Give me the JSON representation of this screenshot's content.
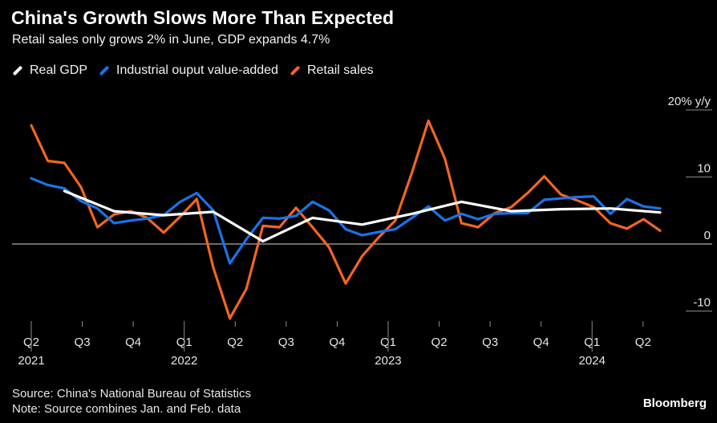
{
  "header": {
    "title": "China's Growth Slows More Than Expected",
    "subtitle": "Retail sales only grows 2% in June, GDP expands 4.7%"
  },
  "legend": [
    {
      "label": "Real GDP",
      "color": "#ffffff"
    },
    {
      "label": "Industrial ouput value-added",
      "color": "#1a73e8"
    },
    {
      "label": "Retail sales",
      "color": "#f26522"
    }
  ],
  "footer": {
    "source": "Source: China's National Bureau of Statistics",
    "note": "Note: Source combines Jan. and Feb. data",
    "brand": "Bloomberg"
  },
  "chart_data": {
    "type": "line",
    "ylim": [
      -11.5,
      20
    ],
    "yticks": [
      {
        "value": 20,
        "label": "20% y/y"
      },
      {
        "value": 10,
        "label": "10"
      },
      {
        "value": 0,
        "label": "0"
      },
      {
        "value": -10,
        "label": "-10"
      }
    ],
    "xlim": [
      0,
      37
    ],
    "xticks": [
      {
        "x": 0,
        "label": "Q2",
        "year": "2021"
      },
      {
        "x": 3,
        "label": "Q3",
        "year": ""
      },
      {
        "x": 6,
        "label": "Q4",
        "year": ""
      },
      {
        "x": 9,
        "label": "Q1",
        "year": "2022"
      },
      {
        "x": 12,
        "label": "Q2",
        "year": ""
      },
      {
        "x": 15,
        "label": "Q3",
        "year": ""
      },
      {
        "x": 18,
        "label": "Q4",
        "year": ""
      },
      {
        "x": 21,
        "label": "Q1",
        "year": "2023"
      },
      {
        "x": 24,
        "label": "Q2",
        "year": ""
      },
      {
        "x": 27,
        "label": "Q3",
        "year": ""
      },
      {
        "x": 30,
        "label": "Q4",
        "year": ""
      },
      {
        "x": 33,
        "label": "Q1",
        "year": "2024"
      },
      {
        "x": 36,
        "label": "Q2",
        "year": ""
      }
    ],
    "series": [
      {
        "name": "Retail sales",
        "color": "#f26522",
        "points": [
          [
            0,
            17.7
          ],
          [
            1,
            12.4
          ],
          [
            2,
            12.1
          ],
          [
            3,
            8.5
          ],
          [
            4,
            2.5
          ],
          [
            5,
            4.4
          ],
          [
            6,
            4.9
          ],
          [
            7,
            3.9
          ],
          [
            8,
            1.7
          ],
          [
            9,
            4.1
          ],
          [
            10,
            6.7
          ],
          [
            11,
            -3.5
          ],
          [
            12,
            -11.1
          ],
          [
            13,
            -6.7
          ],
          [
            14,
            2.7
          ],
          [
            15,
            2.5
          ],
          [
            16,
            5.4
          ],
          [
            17,
            2.5
          ],
          [
            18,
            -0.5
          ],
          [
            19,
            -5.9
          ],
          [
            20,
            -1.8
          ],
          [
            21,
            1.0
          ],
          [
            22,
            3.5
          ],
          [
            23,
            10.6
          ],
          [
            24,
            18.4
          ],
          [
            25,
            12.7
          ],
          [
            26,
            3.1
          ],
          [
            27,
            2.5
          ],
          [
            28,
            4.6
          ],
          [
            29,
            5.5
          ],
          [
            30,
            7.6
          ],
          [
            31,
            10.1
          ],
          [
            32,
            7.4
          ],
          [
            33,
            6.5
          ],
          [
            34,
            5.5
          ],
          [
            35,
            3.1
          ],
          [
            36,
            2.3
          ],
          [
            37,
            3.7
          ],
          [
            38,
            2.0
          ]
        ]
      },
      {
        "name": "Industrial ouput value-added",
        "color": "#1a73e8",
        "points": [
          [
            0,
            9.8
          ],
          [
            1,
            8.8
          ],
          [
            2,
            8.3
          ],
          [
            3,
            6.4
          ],
          [
            4,
            5.3
          ],
          [
            5,
            3.1
          ],
          [
            6,
            3.5
          ],
          [
            7,
            3.8
          ],
          [
            8,
            4.3
          ],
          [
            9,
            6.3
          ],
          [
            10,
            7.6
          ],
          [
            11,
            5.0
          ],
          [
            12,
            -2.9
          ],
          [
            13,
            0.7
          ],
          [
            14,
            3.9
          ],
          [
            15,
            3.8
          ],
          [
            16,
            4.2
          ],
          [
            17,
            6.3
          ],
          [
            18,
            5.0
          ],
          [
            19,
            2.2
          ],
          [
            20,
            1.3
          ],
          [
            21,
            1.8
          ],
          [
            22,
            2.2
          ],
          [
            23,
            3.9
          ],
          [
            24,
            5.6
          ],
          [
            25,
            3.5
          ],
          [
            26,
            4.5
          ],
          [
            27,
            3.7
          ],
          [
            28,
            4.5
          ],
          [
            29,
            4.6
          ],
          [
            30,
            4.6
          ],
          [
            31,
            6.6
          ],
          [
            32,
            6.8
          ],
          [
            33,
            7.0
          ],
          [
            34,
            7.1
          ],
          [
            35,
            4.5
          ],
          [
            36,
            6.7
          ],
          [
            37,
            5.6
          ],
          [
            38,
            5.3
          ]
        ]
      },
      {
        "name": "Real GDP",
        "color": "#ffffff",
        "points": [
          [
            2,
            7.9
          ],
          [
            5,
            4.9
          ],
          [
            8,
            4.3
          ],
          [
            11,
            4.8
          ],
          [
            14,
            0.4
          ],
          [
            17,
            3.9
          ],
          [
            20,
            2.9
          ],
          [
            23,
            4.5
          ],
          [
            26,
            6.3
          ],
          [
            29,
            4.9
          ],
          [
            32,
            5.2
          ],
          [
            35,
            5.3
          ],
          [
            38,
            4.7
          ]
        ]
      }
    ]
  }
}
